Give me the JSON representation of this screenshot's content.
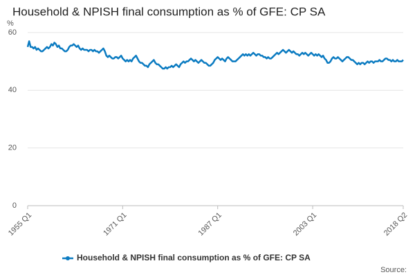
{
  "chart_data": {
    "type": "line",
    "title": "Household & NPISH final consumption as % of GFE: CP SA",
    "y_label": "%",
    "source": "Source:",
    "legend": "bottom",
    "grid": true,
    "ylim": [
      0,
      60
    ],
    "yticks": [
      0,
      20,
      40,
      60
    ],
    "categories": [
      "1955 Q1",
      null,
      null,
      null,
      null,
      null,
      null,
      null,
      null,
      null,
      null,
      null,
      null,
      null,
      null,
      null,
      null,
      null,
      null,
      null,
      null,
      null,
      null,
      null,
      null,
      null,
      null,
      null,
      null,
      null,
      null,
      null,
      null,
      null,
      null,
      null,
      null,
      null,
      null,
      null,
      null,
      null,
      null,
      null,
      null,
      null,
      null,
      null,
      null,
      null,
      null,
      null,
      null,
      null,
      null,
      null,
      null,
      null,
      null,
      null,
      null,
      null,
      null,
      null,
      "1971 Q1",
      null,
      null,
      null,
      null,
      null,
      null,
      null,
      null,
      null,
      null,
      null,
      null,
      null,
      null,
      null,
      null,
      null,
      null,
      null,
      null,
      null,
      null,
      null,
      null,
      null,
      null,
      null,
      null,
      null,
      null,
      null,
      null,
      null,
      null,
      null,
      null,
      null,
      null,
      null,
      null,
      null,
      null,
      null,
      null,
      null,
      null,
      null,
      null,
      null,
      null,
      null,
      null,
      null,
      null,
      null,
      null,
      null,
      null,
      null,
      null,
      null,
      null,
      null,
      "1987 Q1",
      null,
      null,
      null,
      null,
      null,
      null,
      null,
      null,
      null,
      null,
      null,
      null,
      null,
      null,
      null,
      null,
      null,
      null,
      null,
      null,
      null,
      null,
      null,
      null,
      null,
      null,
      null,
      null,
      null,
      null,
      null,
      null,
      null,
      null,
      null,
      null,
      null,
      null,
      null,
      null,
      null,
      null,
      null,
      null,
      null,
      null,
      null,
      null,
      null,
      null,
      null,
      null,
      null,
      null,
      null,
      null,
      null,
      null,
      null,
      null,
      null,
      null,
      null,
      "2003 Q1",
      null,
      null,
      null,
      null,
      null,
      null,
      null,
      null,
      null,
      null,
      null,
      null,
      null,
      null,
      null,
      null,
      null,
      null,
      null,
      null,
      null,
      null,
      null,
      null,
      null,
      null,
      null,
      null,
      null,
      null,
      null,
      null,
      null,
      null,
      null,
      null,
      null,
      null,
      null,
      null,
      null,
      null,
      null,
      null,
      null,
      null,
      null,
      null,
      null,
      null,
      null,
      null,
      null,
      null,
      null,
      null,
      null,
      null,
      null,
      null,
      "2018 Q2"
    ],
    "series": [
      {
        "name": "Household & NPISH final consumption as % of GFE: CP SA",
        "color": "#0b7bc1",
        "values": [
          55,
          57,
          55,
          55,
          54.5,
          55,
          54,
          54.5,
          54,
          53.5,
          53.5,
          54,
          54.5,
          55,
          54.5,
          55,
          56,
          55.5,
          56.5,
          56,
          55,
          55.5,
          54.5,
          54.5,
          54,
          53.5,
          53.5,
          54,
          55,
          55.5,
          55.5,
          56,
          55.5,
          55,
          55.5,
          54.5,
          54,
          54.5,
          54,
          54,
          54,
          53.5,
          54,
          54,
          53.5,
          54,
          53.5,
          53.5,
          53,
          53.5,
          54,
          54.5,
          53.5,
          52,
          51.5,
          52,
          51.5,
          51,
          51,
          51.5,
          51.5,
          51,
          51.5,
          52,
          51,
          50.5,
          50,
          50.5,
          50,
          50.5,
          50,
          51,
          51.5,
          52,
          51,
          50,
          49.5,
          49.5,
          49,
          48.5,
          48.5,
          48,
          49,
          49.5,
          50,
          50.5,
          49.5,
          49,
          49,
          48.5,
          48,
          47.5,
          47.5,
          48,
          47.5,
          48,
          48,
          48.5,
          48,
          48.5,
          49,
          48.5,
          48,
          49,
          49.5,
          50,
          49.5,
          50,
          50,
          50.5,
          51,
          50.5,
          50,
          50.5,
          50,
          49.5,
          50,
          50.5,
          50,
          49.5,
          49.5,
          49,
          48.5,
          48.5,
          49,
          49.5,
          50.5,
          51,
          51.5,
          51,
          50.5,
          51,
          50.5,
          50,
          51,
          51.5,
          51,
          50.5,
          50,
          50,
          50,
          50.5,
          51,
          51.5,
          52,
          52.5,
          52,
          52.5,
          52,
          52.5,
          52,
          52.5,
          53,
          52.5,
          52,
          52.5,
          52.5,
          52,
          52,
          51.5,
          51.5,
          51,
          51.5,
          51,
          51,
          51.5,
          52,
          52.5,
          53,
          52.5,
          53,
          53.5,
          54,
          53.5,
          53,
          53.5,
          54,
          53.5,
          53,
          53.5,
          53,
          52.5,
          52.5,
          52,
          52.5,
          53,
          52.5,
          53,
          52.5,
          52,
          52.5,
          53,
          52.5,
          52,
          52.5,
          52,
          52.5,
          52,
          51.5,
          52,
          51,
          50.5,
          49.5,
          49.5,
          50,
          51,
          51.5,
          51,
          51,
          51.5,
          51,
          50.5,
          50,
          50.5,
          51,
          51.5,
          51.5,
          51,
          50.5,
          50.5,
          50,
          49.5,
          49,
          49.5,
          49,
          49.5,
          49.5,
          49,
          49.5,
          50,
          49.5,
          50,
          50,
          49.5,
          50,
          50,
          50,
          50.5,
          50,
          50,
          50.5,
          51,
          51,
          50.5,
          50.5,
          50,
          50.5,
          50,
          50,
          50.5,
          50,
          50,
          50,
          50.5
        ]
      }
    ]
  }
}
